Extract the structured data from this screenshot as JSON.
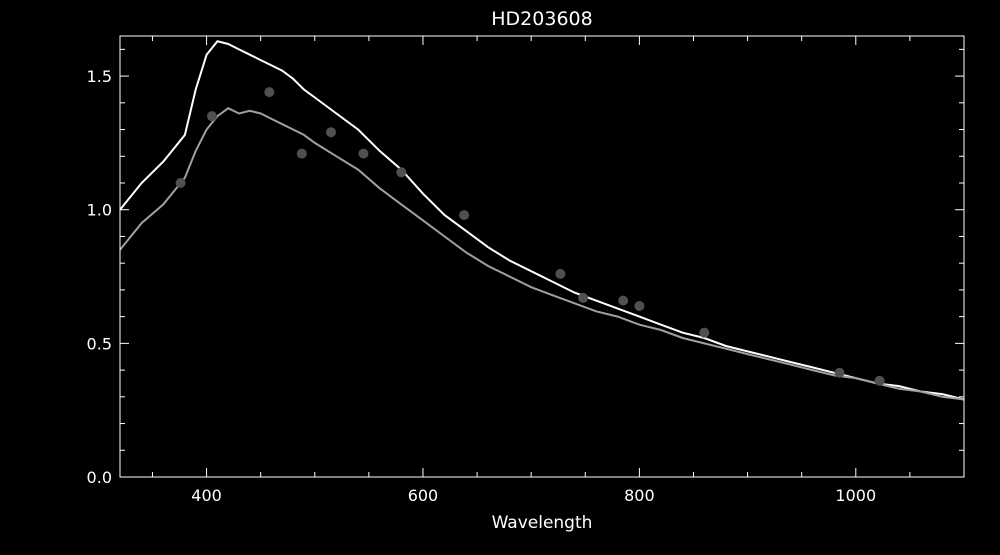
{
  "chart_data": {
    "type": "line",
    "title": "HD203608",
    "xlabel": "Wavelength",
    "ylabel": "",
    "xlim": [
      320,
      1100
    ],
    "ylim": [
      0.0,
      1.65
    ],
    "grid": false,
    "background": "#000000",
    "axis_color": "#ffffff",
    "x_ticks": [
      400,
      600,
      800,
      1000
    ],
    "x_tick_labels": [
      "400",
      "600",
      "800",
      "1000"
    ],
    "y_ticks": [
      0.0,
      0.5,
      1.0,
      1.5
    ],
    "y_tick_labels": [
      "0.0",
      "0.5",
      "1.0",
      "1.5"
    ],
    "x_minor_step": 50,
    "y_minor_step": 0.1,
    "series": [
      {
        "style": "spectrum",
        "color": "#ffffff",
        "x": [
          320,
          340,
          360,
          380,
          390,
          400,
          410,
          420,
          430,
          440,
          450,
          460,
          470,
          480,
          490,
          500,
          520,
          540,
          560,
          580,
          600,
          620,
          640,
          660,
          680,
          700,
          720,
          740,
          760,
          780,
          800,
          820,
          840,
          860,
          880,
          900,
          920,
          940,
          960,
          980,
          1000,
          1020,
          1040,
          1060,
          1080,
          1100
        ],
        "y": [
          1.0,
          1.1,
          1.18,
          1.28,
          1.45,
          1.58,
          1.63,
          1.62,
          1.6,
          1.58,
          1.56,
          1.54,
          1.52,
          1.49,
          1.45,
          1.42,
          1.36,
          1.3,
          1.22,
          1.15,
          1.06,
          0.98,
          0.92,
          0.86,
          0.81,
          0.77,
          0.73,
          0.69,
          0.66,
          0.63,
          0.6,
          0.57,
          0.54,
          0.52,
          0.49,
          0.47,
          0.45,
          0.43,
          0.41,
          0.39,
          0.37,
          0.35,
          0.34,
          0.32,
          0.31,
          0.29
        ]
      },
      {
        "style": "spectrum",
        "color": "#a0a0a0",
        "x": [
          320,
          340,
          360,
          380,
          390,
          400,
          410,
          420,
          430,
          440,
          450,
          460,
          470,
          480,
          490,
          500,
          520,
          540,
          560,
          580,
          600,
          620,
          640,
          660,
          680,
          700,
          720,
          740,
          760,
          780,
          800,
          820,
          840,
          860,
          880,
          900,
          920,
          940,
          960,
          980,
          1000,
          1020,
          1040,
          1060,
          1080,
          1100
        ],
        "y": [
          0.85,
          0.95,
          1.02,
          1.12,
          1.22,
          1.3,
          1.35,
          1.38,
          1.36,
          1.37,
          1.36,
          1.34,
          1.32,
          1.3,
          1.28,
          1.25,
          1.2,
          1.15,
          1.08,
          1.02,
          0.96,
          0.9,
          0.84,
          0.79,
          0.75,
          0.71,
          0.68,
          0.65,
          0.62,
          0.6,
          0.57,
          0.55,
          0.52,
          0.5,
          0.48,
          0.46,
          0.44,
          0.42,
          0.4,
          0.38,
          0.37,
          0.35,
          0.33,
          0.32,
          0.3,
          0.29
        ]
      },
      {
        "style": "points",
        "color": "#505050",
        "x": [
          376,
          405,
          458,
          488,
          515,
          545,
          580,
          638,
          727,
          748,
          785,
          800,
          860,
          985,
          1022
        ],
        "y": [
          1.1,
          1.35,
          1.44,
          1.21,
          1.29,
          1.21,
          1.14,
          0.98,
          0.76,
          0.67,
          0.66,
          0.64,
          0.54,
          0.39,
          0.36
        ]
      }
    ]
  }
}
